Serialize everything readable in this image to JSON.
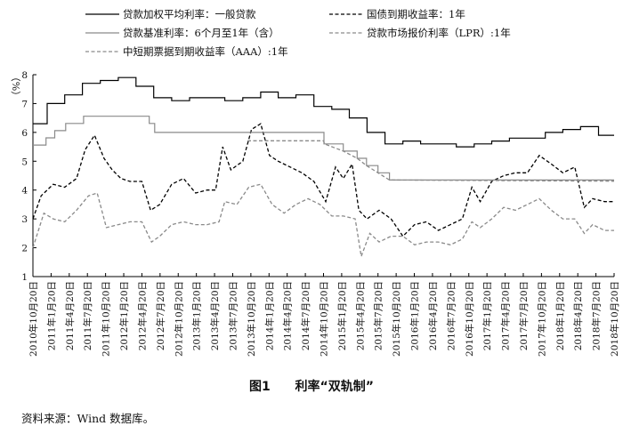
{
  "chart_data": {
    "type": "line",
    "unit": "（%）",
    "ylim": [
      1,
      8
    ],
    "yticks": [
      "1",
      "2",
      "3",
      "4",
      "5",
      "6",
      "7",
      "8"
    ],
    "x_start": "2010-10-20",
    "x_end": "2018-12-20",
    "categories": [
      "2010年10月20日",
      "2011年1月20日",
      "2011年4月20日",
      "2011年7月20日",
      "2011年10月20日",
      "2012年1月20日",
      "2012年4月20日",
      "2012年7月20日",
      "2012年10月20日",
      "2013年1月20日",
      "2013年4月20日",
      "2013年7月20日",
      "2013年10月20日",
      "2014年1月20日",
      "2014年4月20日",
      "2014年7月20日",
      "2014年10月20日",
      "2015年1月20日",
      "2015年4月20日",
      "2015年7月20日",
      "2015年10月20日",
      "2016年1月20日",
      "2016年4月20日",
      "2016年7月20日",
      "2016年10月20日",
      "2017年1月20日",
      "2017年4月20日",
      "2017年7月20日",
      "2017年10月20日",
      "2018年1月20日",
      "2018年4月20日",
      "2018年7月20日",
      "2018年10月20日"
    ],
    "legend_position": "top",
    "grid": false,
    "series": [
      {
        "name": "贷款加权平均利率：一般贷款",
        "style": "solid",
        "color": "#000000",
        "step": true,
        "points": [
          [
            "2010-10-20",
            6.3
          ],
          [
            "2011-01-01",
            7.0
          ],
          [
            "2011-04-01",
            7.3
          ],
          [
            "2011-07-01",
            7.7
          ],
          [
            "2011-10-01",
            7.8
          ],
          [
            "2012-01-01",
            7.9
          ],
          [
            "2012-04-01",
            7.6
          ],
          [
            "2012-07-01",
            7.2
          ],
          [
            "2012-10-01",
            7.1
          ],
          [
            "2013-01-01",
            7.2
          ],
          [
            "2013-04-01",
            7.2
          ],
          [
            "2013-07-01",
            7.1
          ],
          [
            "2013-10-01",
            7.2
          ],
          [
            "2014-01-01",
            7.4
          ],
          [
            "2014-04-01",
            7.2
          ],
          [
            "2014-07-01",
            7.3
          ],
          [
            "2014-10-01",
            6.9
          ],
          [
            "2015-01-01",
            6.8
          ],
          [
            "2015-04-01",
            6.5
          ],
          [
            "2015-07-01",
            6.0
          ],
          [
            "2015-10-01",
            5.6
          ],
          [
            "2016-01-01",
            5.7
          ],
          [
            "2016-04-01",
            5.6
          ],
          [
            "2016-07-01",
            5.6
          ],
          [
            "2016-10-01",
            5.5
          ],
          [
            "2017-01-01",
            5.6
          ],
          [
            "2017-04-01",
            5.7
          ],
          [
            "2017-07-01",
            5.8
          ],
          [
            "2017-10-01",
            5.8
          ],
          [
            "2018-01-01",
            6.0
          ],
          [
            "2018-04-01",
            6.1
          ],
          [
            "2018-07-01",
            6.2
          ],
          [
            "2018-10-01",
            5.9
          ],
          [
            "2018-12-20",
            5.9
          ]
        ]
      },
      {
        "name": "国债到期收益率：1年",
        "style": "dashed",
        "color": "#000000",
        "step": false,
        "points": [
          [
            "2010-10-20",
            3.0
          ],
          [
            "2010-12-01",
            3.8
          ],
          [
            "2011-02-01",
            4.2
          ],
          [
            "2011-04-01",
            4.1
          ],
          [
            "2011-06-01",
            4.4
          ],
          [
            "2011-07-15",
            5.4
          ],
          [
            "2011-09-01",
            5.9
          ],
          [
            "2011-10-20",
            5.1
          ],
          [
            "2011-12-01",
            4.7
          ],
          [
            "2012-01-15",
            4.4
          ],
          [
            "2012-03-01",
            4.3
          ],
          [
            "2012-05-01",
            4.3
          ],
          [
            "2012-06-15",
            3.3
          ],
          [
            "2012-08-01",
            3.5
          ],
          [
            "2012-10-01",
            4.2
          ],
          [
            "2012-12-01",
            4.4
          ],
          [
            "2013-02-01",
            3.9
          ],
          [
            "2013-04-01",
            4.0
          ],
          [
            "2013-05-15",
            4.0
          ],
          [
            "2013-06-20",
            5.5
          ],
          [
            "2013-08-01",
            4.7
          ],
          [
            "2013-10-01",
            5.0
          ],
          [
            "2013-11-15",
            6.1
          ],
          [
            "2014-01-01",
            6.3
          ],
          [
            "2014-02-15",
            5.2
          ],
          [
            "2014-04-01",
            5.0
          ],
          [
            "2014-06-01",
            4.8
          ],
          [
            "2014-08-01",
            4.6
          ],
          [
            "2014-10-01",
            4.3
          ],
          [
            "2014-12-01",
            3.6
          ],
          [
            "2015-01-20",
            4.8
          ],
          [
            "2015-03-01",
            4.4
          ],
          [
            "2015-04-15",
            4.9
          ],
          [
            "2015-05-20",
            3.3
          ],
          [
            "2015-07-01",
            3.0
          ],
          [
            "2015-09-01",
            3.3
          ],
          [
            "2015-11-01",
            3.0
          ],
          [
            "2016-01-01",
            2.4
          ],
          [
            "2016-03-01",
            2.8
          ],
          [
            "2016-05-01",
            2.9
          ],
          [
            "2016-07-01",
            2.6
          ],
          [
            "2016-09-01",
            2.8
          ],
          [
            "2016-11-01",
            3.0
          ],
          [
            "2016-12-20",
            4.1
          ],
          [
            "2017-02-01",
            3.6
          ],
          [
            "2017-04-01",
            4.3
          ],
          [
            "2017-06-01",
            4.5
          ],
          [
            "2017-08-01",
            4.6
          ],
          [
            "2017-10-01",
            4.6
          ],
          [
            "2017-12-01",
            5.2
          ],
          [
            "2018-02-01",
            4.9
          ],
          [
            "2018-04-01",
            4.6
          ],
          [
            "2018-06-01",
            4.8
          ],
          [
            "2018-07-20",
            3.4
          ],
          [
            "2018-09-01",
            3.7
          ],
          [
            "2018-11-01",
            3.6
          ],
          [
            "2018-12-20",
            3.6
          ]
        ]
      },
      {
        "name": "贷款基准利率：6个月至1年（含）",
        "style": "solid",
        "color": "#8a8a8a",
        "step": true,
        "points": [
          [
            "2010-10-20",
            5.56
          ],
          [
            "2010-12-26",
            5.81
          ],
          [
            "2011-02-09",
            6.06
          ],
          [
            "2011-04-06",
            6.31
          ],
          [
            "2011-07-07",
            6.56
          ],
          [
            "2012-06-08",
            6.31
          ],
          [
            "2012-07-06",
            6.0
          ],
          [
            "2014-11-22",
            5.6
          ],
          [
            "2015-03-01",
            5.35
          ],
          [
            "2015-05-11",
            5.1
          ],
          [
            "2015-06-28",
            4.85
          ],
          [
            "2015-08-26",
            4.6
          ],
          [
            "2015-10-24",
            4.35
          ],
          [
            "2018-12-20",
            4.35
          ]
        ]
      },
      {
        "name": "贷款市场报价利率（LPR）:1年",
        "style": "dashed",
        "color": "#8a8a8a",
        "step": false,
        "points": [
          [
            "2013-10-25",
            5.71
          ],
          [
            "2014-11-20",
            5.71
          ],
          [
            "2014-11-24",
            5.6
          ],
          [
            "2015-03-01",
            5.35
          ],
          [
            "2015-05-11",
            5.1
          ],
          [
            "2015-06-28",
            4.85
          ],
          [
            "2015-08-26",
            4.6
          ],
          [
            "2015-10-24",
            4.35
          ],
          [
            "2018-12-20",
            4.31
          ]
        ]
      },
      {
        "name": "中短期票据到期收益率（AAA）:1年",
        "style": "dashed",
        "color": "#8a8a8a",
        "step": false,
        "points": [
          [
            "2010-10-20",
            2.0
          ],
          [
            "2010-12-15",
            3.2
          ],
          [
            "2011-02-01",
            3.0
          ],
          [
            "2011-04-01",
            2.9
          ],
          [
            "2011-06-01",
            3.3
          ],
          [
            "2011-08-01",
            3.8
          ],
          [
            "2011-09-15",
            3.9
          ],
          [
            "2011-11-01",
            2.7
          ],
          [
            "2012-01-01",
            2.8
          ],
          [
            "2012-03-01",
            2.9
          ],
          [
            "2012-05-01",
            2.9
          ],
          [
            "2012-06-20",
            2.2
          ],
          [
            "2012-08-01",
            2.4
          ],
          [
            "2012-10-01",
            2.8
          ],
          [
            "2012-12-01",
            2.9
          ],
          [
            "2013-02-01",
            2.8
          ],
          [
            "2013-04-01",
            2.8
          ],
          [
            "2013-06-01",
            2.9
          ],
          [
            "2013-07-01",
            3.6
          ],
          [
            "2013-09-01",
            3.5
          ],
          [
            "2013-11-01",
            4.1
          ],
          [
            "2014-01-01",
            4.2
          ],
          [
            "2014-03-01",
            3.5
          ],
          [
            "2014-05-01",
            3.2
          ],
          [
            "2014-07-01",
            3.5
          ],
          [
            "2014-09-01",
            3.7
          ],
          [
            "2014-11-01",
            3.5
          ],
          [
            "2015-01-01",
            3.1
          ],
          [
            "2015-03-01",
            3.1
          ],
          [
            "2015-05-01",
            3.0
          ],
          [
            "2015-06-01",
            1.7
          ],
          [
            "2015-07-15",
            2.5
          ],
          [
            "2015-09-01",
            2.2
          ],
          [
            "2015-11-01",
            2.4
          ],
          [
            "2016-01-01",
            2.4
          ],
          [
            "2016-03-01",
            2.1
          ],
          [
            "2016-05-01",
            2.2
          ],
          [
            "2016-07-01",
            2.2
          ],
          [
            "2016-09-01",
            2.1
          ],
          [
            "2016-11-01",
            2.3
          ],
          [
            "2016-12-20",
            2.9
          ],
          [
            "2017-02-01",
            2.7
          ],
          [
            "2017-04-01",
            3.0
          ],
          [
            "2017-06-01",
            3.4
          ],
          [
            "2017-08-01",
            3.3
          ],
          [
            "2017-10-01",
            3.5
          ],
          [
            "2017-12-01",
            3.7
          ],
          [
            "2018-02-01",
            3.3
          ],
          [
            "2018-04-01",
            3.0
          ],
          [
            "2018-06-01",
            3.0
          ],
          [
            "2018-07-20",
            2.5
          ],
          [
            "2018-09-01",
            2.8
          ],
          [
            "2018-11-01",
            2.6
          ],
          [
            "2018-12-20",
            2.6
          ]
        ]
      }
    ]
  },
  "caption": {
    "label": "图1",
    "title": "利率“双轨制”"
  },
  "source": "资料来源：Wind 数据库。"
}
